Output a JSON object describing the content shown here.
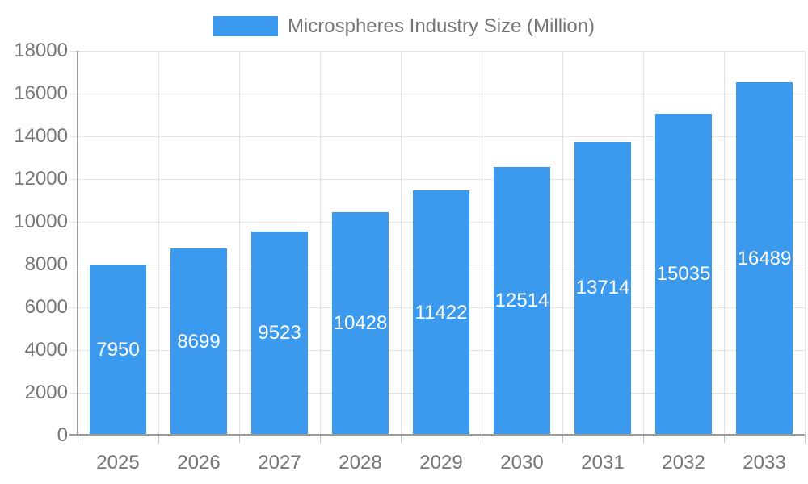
{
  "legend": {
    "items": [
      {
        "label": "Microspheres Industry Size (Million)",
        "color": "#3b99ee"
      }
    ]
  },
  "colors": {
    "bar": "#3b99ee",
    "grid": "#e2e2e2",
    "tick": "#c2c2c2",
    "axis": "#9a9a9a",
    "axis_text": "#757575",
    "value_text": "#ffffff",
    "background": "#ffffff"
  },
  "chart_data": {
    "type": "bar",
    "title": "Microspheres Industry Size (Million)",
    "categories": [
      "2025",
      "2026",
      "2027",
      "2028",
      "2029",
      "2030",
      "2031",
      "2032",
      "2033"
    ],
    "values": [
      7950,
      8699,
      9523,
      10428,
      11422,
      12514,
      13714,
      15035,
      16489
    ],
    "ylim": [
      0,
      18000
    ],
    "ytick_step": 2000,
    "xlabel": "",
    "ylabel": "",
    "grid": true,
    "legend_position": "top-center",
    "legend_entries": [
      "Microspheres Industry Size (Million)"
    ],
    "value_labels_position": "inside-center"
  }
}
